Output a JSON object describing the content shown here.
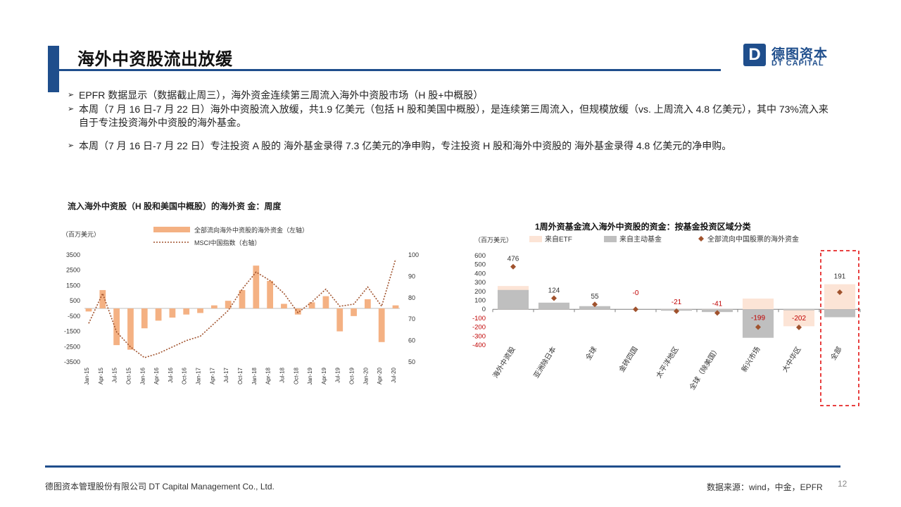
{
  "slide": {
    "title": "海外中资股流出放缓",
    "page_number": "12"
  },
  "logo": {
    "cn": "德图资本",
    "en": "DT CAPITAL",
    "mark": "D"
  },
  "bullets": [
    "EPFR 数据显示（数据截止周三），海外资金连续第三周流入海外中资股市场（H 股+中概股）",
    "本周（7 月 16 日-7 月 22 日）海外中资股流入放缓，共1.9 亿美元（包括 H 股和美国中概股），是连续第三周流入，但规模放缓（vs. 上周流入 4.8 亿美元），其中 73%流入来自于专注投资海外中资股的海外基金。",
    "本周（7 月 16 日-7 月 22 日）专注投资 A 股的 海外基金录得 7.3 亿美元的净申购，专注投资 H 股和海外中资股的 海外基金录得 4.8 亿美元的净申购。"
  ],
  "footer": {
    "company": "德图资本管理股份有限公司  DT Capital  Management  Co., Ltd.",
    "source": "数据来源：wind，中金，EPFR"
  },
  "left_chart": {
    "caption": "流入海外中资股（H 股和美国中概股）的海外资  金：周度",
    "unit": "（百万美元）",
    "legend_bar": "全部流向海外中资股的海外资金（左轴）",
    "legend_line": "MSCI中国指数（右轴）"
  },
  "right_chart": {
    "title": "1周外资基金流入海外中资股的资金：按基金投资区域分类",
    "unit": "（百万美元）",
    "legend_etf": "来自ETF",
    "legend_active": "来自主动基金",
    "legend_total": "全部流向中国股票的海外资金"
  },
  "chart_data": [
    {
      "type": "bar",
      "title": "流入海外中资股（H 股和美国中概股）的海外资  金：周度",
      "ylabel": "（百万美元）",
      "ylim": [
        -3500,
        3500
      ],
      "y_ticks": [
        3500,
        2500,
        1500,
        500,
        -500,
        -1500,
        -2500,
        -3500
      ],
      "y2lim": [
        50,
        100
      ],
      "y2_ticks": [
        100,
        90,
        80,
        70,
        60,
        50
      ],
      "x_ticks": [
        "Jan-15",
        "Apr-15",
        "Jul-15",
        "Oct-15",
        "Jan-16",
        "Apr-16",
        "Jul-16",
        "Oct-16",
        "Jan-17",
        "Apr-17",
        "Jul-17",
        "Oct-17",
        "Jan-18",
        "Apr-18",
        "Jul-18",
        "Oct-18",
        "Jan-19",
        "Apr-19",
        "Jul-19",
        "Oct-19",
        "Jan-20",
        "Apr-20",
        "Jul-20"
      ],
      "series": [
        {
          "name": "全部流向海外中资股的海外资金（左轴）",
          "kind": "bar",
          "color": "#f4b183",
          "x": [
            "Jan-15",
            "Apr-15",
            "Jul-15",
            "Oct-15",
            "Jan-16",
            "Apr-16",
            "Jul-16",
            "Oct-16",
            "Jan-17",
            "Apr-17",
            "Jul-17",
            "Oct-17",
            "Jan-18",
            "Apr-18",
            "Jul-18",
            "Oct-18",
            "Jan-19",
            "Apr-19",
            "Jul-19",
            "Oct-19",
            "Jan-20",
            "Apr-20",
            "Jul-20"
          ],
          "values": [
            -200,
            1200,
            -2400,
            -2700,
            -1300,
            -800,
            -600,
            -400,
            -300,
            200,
            500,
            1200,
            2800,
            1800,
            300,
            -400,
            400,
            800,
            -1500,
            -500,
            600,
            -2200,
            200
          ]
        },
        {
          "name": "MSCI中国指数（右轴）",
          "kind": "line",
          "color": "#a0522d",
          "x": [
            "Jan-15",
            "Apr-15",
            "Jul-15",
            "Oct-15",
            "Jan-16",
            "Apr-16",
            "Jul-16",
            "Oct-16",
            "Jan-17",
            "Apr-17",
            "Jul-17",
            "Oct-17",
            "Jan-18",
            "Apr-18",
            "Jul-18",
            "Oct-18",
            "Jan-19",
            "Apr-19",
            "Jul-19",
            "Oct-19",
            "Jan-20",
            "Apr-20",
            "Jul-20"
          ],
          "values": [
            68,
            82,
            64,
            57,
            52,
            54,
            57,
            60,
            62,
            68,
            74,
            84,
            92,
            88,
            82,
            73,
            78,
            84,
            76,
            77,
            85,
            76,
            98
          ]
        }
      ]
    },
    {
      "type": "bar",
      "title": "1周外资基金流入海外中资股的资金：按基金投资区域分类",
      "ylabel": "（百万美元）",
      "ylim": [
        -400,
        600
      ],
      "y_ticks": [
        600,
        500,
        400,
        300,
        200,
        100,
        0,
        -100,
        -200,
        -300,
        -400
      ],
      "categories": [
        "海外中资股",
        "亚洲除日本",
        "全球",
        "金砖四国",
        "太平洋地区",
        "全球（除美国）",
        "新兴市场",
        "大中华区",
        "全部"
      ],
      "series": [
        {
          "name": "来自ETF",
          "color": "#fce4d6",
          "values": [
            260,
            50,
            20,
            0,
            -5,
            -10,
            120,
            -190,
            280
          ]
        },
        {
          "name": "来自主动基金",
          "color": "#bfbfbf",
          "values": [
            216,
            74,
            35,
            0,
            -16,
            -31,
            -319,
            -12,
            -89
          ]
        },
        {
          "name": "全部流向中国股票的海外资金",
          "color": "#a0522d",
          "values": [
            476,
            124,
            55,
            0,
            -21,
            -41,
            -199,
            -202,
            191
          ]
        }
      ],
      "data_labels": [
        "476",
        "124",
        "55",
        "-0",
        "-21",
        "-41",
        "-199",
        "-202",
        "191"
      ],
      "highlight": "全部"
    }
  ]
}
